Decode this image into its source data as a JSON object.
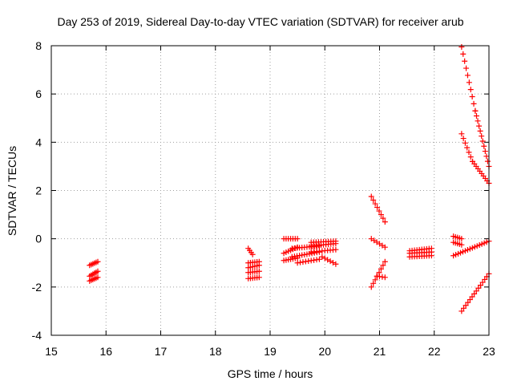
{
  "chart_data": {
    "type": "scatter",
    "title": "Day 253 of 2019, Sidereal Day-to-day VTEC variation (SDTVAR) for receiver arub",
    "xlabel": "GPS time / hours",
    "ylabel": "SDTVAR / TECUs",
    "xlim": [
      15,
      23
    ],
    "ylim": [
      -4,
      8
    ],
    "xticks": [
      "15",
      "16",
      "17",
      "18",
      "19",
      "20",
      "21",
      "22",
      "23"
    ],
    "yticks": [
      "-4",
      "-2",
      "0",
      "2",
      "4",
      "6",
      "8"
    ],
    "grid": true,
    "marker": "+",
    "color": "#ff0000",
    "segments": [
      {
        "x0": 15.7,
        "x1": 15.85,
        "y0": -1.1,
        "y1": -0.95,
        "n": 6
      },
      {
        "x0": 15.7,
        "x1": 15.85,
        "y0": -1.55,
        "y1": -1.35,
        "n": 6
      },
      {
        "x0": 15.7,
        "x1": 15.85,
        "y0": -1.75,
        "y1": -1.6,
        "n": 6
      },
      {
        "x0": 18.6,
        "x1": 18.68,
        "y0": -0.4,
        "y1": -0.65,
        "n": 4
      },
      {
        "x0": 18.6,
        "x1": 18.8,
        "y0": -1.0,
        "y1": -0.95,
        "n": 6
      },
      {
        "x0": 18.6,
        "x1": 18.8,
        "y0": -1.2,
        "y1": -1.1,
        "n": 6
      },
      {
        "x0": 18.6,
        "x1": 18.8,
        "y0": -1.4,
        "y1": -1.35,
        "n": 6
      },
      {
        "x0": 18.6,
        "x1": 18.8,
        "y0": -1.65,
        "y1": -1.6,
        "n": 6
      },
      {
        "x0": 19.25,
        "x1": 19.5,
        "y0": 0.0,
        "y1": 0.0,
        "n": 7
      },
      {
        "x0": 19.25,
        "x1": 19.5,
        "y0": -0.6,
        "y1": -0.35,
        "n": 7
      },
      {
        "x0": 19.25,
        "x1": 19.5,
        "y0": -0.9,
        "y1": -0.8,
        "n": 7
      },
      {
        "x0": 19.4,
        "x1": 19.9,
        "y0": -0.4,
        "y1": -0.3,
        "n": 12
      },
      {
        "x0": 19.4,
        "x1": 19.9,
        "y0": -0.75,
        "y1": -0.55,
        "n": 12
      },
      {
        "x0": 19.5,
        "x1": 19.9,
        "y0": -1.0,
        "y1": -0.85,
        "n": 9
      },
      {
        "x0": 19.75,
        "x1": 20.2,
        "y0": -0.15,
        "y1": -0.1,
        "n": 11
      },
      {
        "x0": 19.75,
        "x1": 20.2,
        "y0": -0.3,
        "y1": -0.2,
        "n": 11
      },
      {
        "x0": 19.75,
        "x1": 20.2,
        "y0": -0.55,
        "y1": -0.45,
        "n": 10
      },
      {
        "x0": 19.95,
        "x1": 20.2,
        "y0": -0.75,
        "y1": -1.05,
        "n": 6
      },
      {
        "x0": 20.85,
        "x1": 21.1,
        "y0": 1.75,
        "y1": 0.7,
        "n": 8
      },
      {
        "x0": 20.85,
        "x1": 21.1,
        "y0": 0.0,
        "y1": -0.35,
        "n": 6
      },
      {
        "x0": 20.85,
        "x1": 21.1,
        "y0": -2.0,
        "y1": -0.95,
        "n": 8
      },
      {
        "x0": 20.95,
        "x1": 21.1,
        "y0": -1.55,
        "y1": -1.6,
        "n": 4
      },
      {
        "x0": 21.55,
        "x1": 21.95,
        "y0": -0.5,
        "y1": -0.4,
        "n": 10
      },
      {
        "x0": 21.55,
        "x1": 21.95,
        "y0": -0.6,
        "y1": -0.55,
        "n": 10
      },
      {
        "x0": 21.55,
        "x1": 21.95,
        "y0": -0.75,
        "y1": -0.7,
        "n": 10
      },
      {
        "x0": 22.35,
        "x1": 22.5,
        "y0": 0.1,
        "y1": 0.0,
        "n": 5
      },
      {
        "x0": 22.35,
        "x1": 22.5,
        "y0": -0.15,
        "y1": -0.25,
        "n": 5
      },
      {
        "x0": 22.35,
        "x1": 23.0,
        "y0": -0.7,
        "y1": -0.1,
        "n": 16
      },
      {
        "x0": 22.5,
        "x1": 23.0,
        "y0": -3.0,
        "y1": -1.45,
        "n": 14
      },
      {
        "x0": 22.5,
        "x1": 22.7,
        "y0": 4.35,
        "y1": 3.2,
        "n": 7
      },
      {
        "x0": 22.7,
        "x1": 23.0,
        "y0": 3.2,
        "y1": 2.3,
        "n": 10
      },
      {
        "x0": 22.5,
        "x1": 22.75,
        "y0": 7.95,
        "y1": 5.3,
        "n": 10
      },
      {
        "x0": 22.75,
        "x1": 23.0,
        "y0": 5.3,
        "y1": 3.0,
        "n": 12
      }
    ]
  }
}
